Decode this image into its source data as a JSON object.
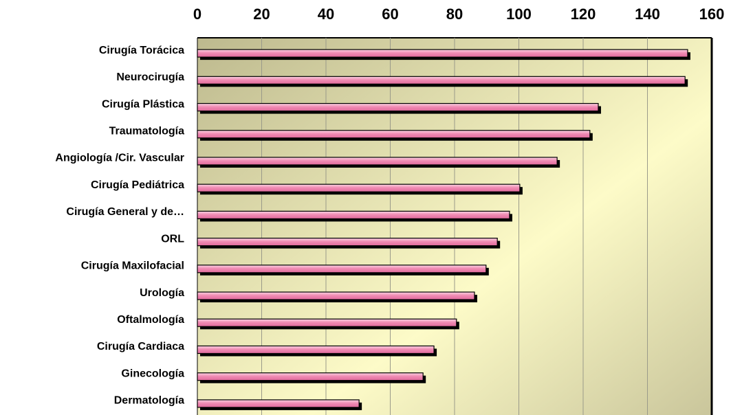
{
  "chart_data": {
    "type": "bar",
    "orientation": "horizontal",
    "categories": [
      "Cirugía Torácica",
      "Neurocirugía",
      "Cirugía Plástica",
      "Traumatología",
      "Angiología /Cir. Vascular",
      "Cirugía Pediátrica",
      "Cirugía General y de…",
      "ORL",
      "Cirugía Maxilofacial",
      "Urología",
      "Oftalmología",
      "Cirugía Cardiaca",
      "Ginecología",
      "Dermatología"
    ],
    "values": [
      152.5,
      151.7,
      124.7,
      122.1,
      111.9,
      100.3,
      97.1,
      93.3,
      89.8,
      86.2,
      80.6,
      73.6,
      70.2,
      50.3
    ],
    "color": "#f08cb4",
    "xlim": [
      0,
      160
    ],
    "xticks": [
      0,
      20,
      40,
      60,
      80,
      100,
      120,
      140,
      160
    ],
    "grid": true
  }
}
